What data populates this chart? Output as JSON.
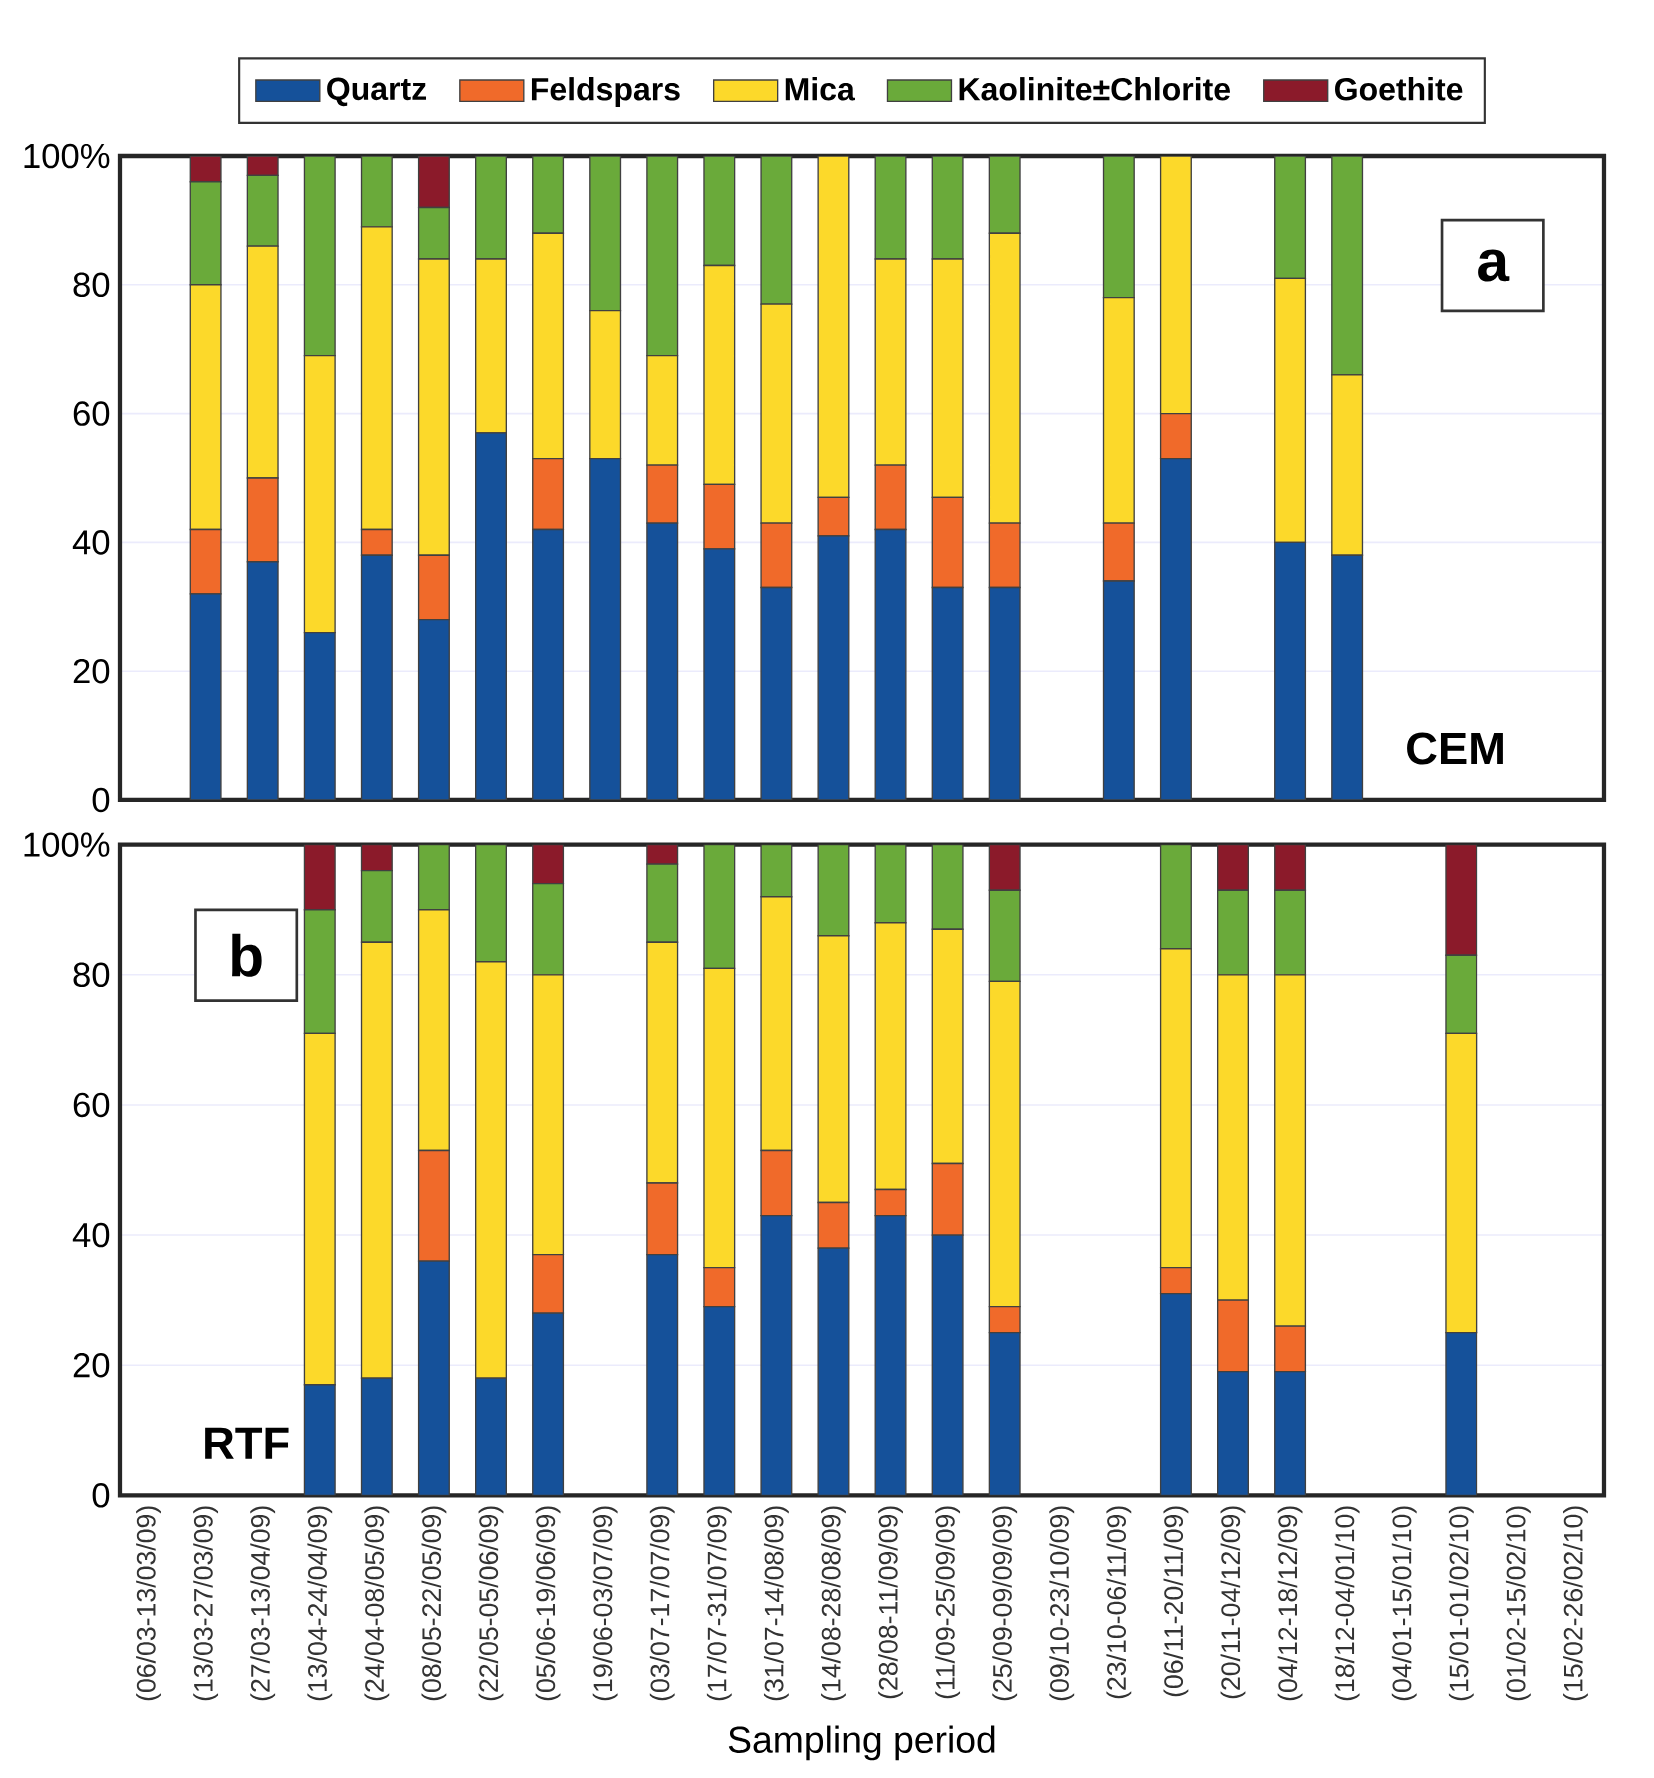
{
  "chart_data": [
    {
      "type": "bar",
      "stacked": true,
      "grid": "y",
      "legend": "top",
      "tick_labels": "y",
      "annotations": [
        "a",
        "CEM"
      ],
      "categories": [
        null,
        null,
        null,
        null,
        null,
        null,
        null,
        null,
        null,
        null,
        null,
        null,
        null,
        null,
        null,
        null,
        null,
        null,
        null,
        null,
        null,
        null,
        null,
        null,
        null,
        null
      ],
      "ylim": [
        0,
        100
      ],
      "yticks": [
        0,
        20,
        40,
        60,
        80,
        {
          "value": 100,
          "label": "100%"
        }
      ],
      "series": [
        {
          "name": "Quartz",
          "color": "#15519a",
          "values": [
            null,
            32,
            37,
            26,
            38,
            28,
            57,
            42,
            53,
            43,
            39,
            33,
            41,
            42,
            33,
            33,
            null,
            34,
            53,
            null,
            40,
            38,
            null,
            null,
            null,
            null
          ]
        },
        {
          "name": "Feldspars",
          "color": "#f06a2a",
          "values": [
            null,
            10,
            13,
            0,
            4,
            10,
            0,
            11,
            0,
            9,
            10,
            10,
            6,
            10,
            14,
            10,
            null,
            9,
            7,
            null,
            0,
            0,
            null,
            null,
            null,
            null
          ]
        },
        {
          "name": "Mica",
          "color": "#fcd92a",
          "values": [
            null,
            38,
            36,
            43,
            47,
            46,
            27,
            35,
            23,
            17,
            34,
            34,
            53,
            32,
            37,
            45,
            null,
            35,
            40,
            null,
            41,
            28,
            null,
            null,
            null,
            null
          ]
        },
        {
          "name": "Kaolinite±Chlorite",
          "color": "#6aaa3a",
          "values": [
            null,
            16,
            11,
            31,
            11,
            8,
            16,
            12,
            24,
            31,
            17,
            23,
            0,
            16,
            16,
            12,
            null,
            22,
            0,
            null,
            19,
            34,
            null,
            null,
            null,
            null
          ]
        },
        {
          "name": "Goethite",
          "color": "#8b1a2a",
          "values": [
            null,
            4,
            3,
            0,
            0,
            8,
            0,
            0,
            0,
            0,
            0,
            0,
            0,
            0,
            0,
            0,
            null,
            0,
            0,
            null,
            0,
            0,
            null,
            null,
            null,
            null
          ]
        }
      ]
    },
    {
      "type": "bar",
      "stacked": true,
      "grid": "y",
      "xlabel": "Sampling period",
      "annotations": [
        "b",
        "RTF"
      ],
      "categories": [
        "(06/03-13/03/09)",
        "(13/03-27/03/09)",
        "(27/03-13/04/09)",
        "(13/04-24/04/09)",
        "(24/04-08/05/09)",
        "(08/05-22/05/09)",
        "(22/05-05/06/09)",
        "(05/06-19/06/09)",
        "(19/06-03/07/09)",
        "(03/07-17/07/09)",
        "(17/07-31/07/09)",
        "(31/07-14/08/09)",
        "(14/08-28/08/09)",
        "(28/08-11/09/09)",
        "(11/09-25/09/09)",
        "(25/09-09/09/09)",
        "(09/10-23/10/09)",
        "(23/10-06/11/09)",
        "(06/11-20/11/09)",
        "(20/11-04/12/09)",
        "(04/12-18/12/09)",
        "(18/12-04/01/10)",
        "(04/01-15/01/10)",
        "(15/01-01/02/10)",
        "(01/02-15/02/10)",
        "(15/02-26/02/10)"
      ],
      "ylim": [
        0,
        100
      ],
      "yticks": [
        0,
        20,
        40,
        60,
        80,
        {
          "value": 100,
          "label": "100%"
        }
      ],
      "series": [
        {
          "color": "#15519a",
          "values": [
            null,
            null,
            null,
            17,
            18,
            36,
            18,
            28,
            null,
            37,
            29,
            43,
            38,
            43,
            40,
            25,
            null,
            null,
            31,
            19,
            19,
            null,
            null,
            25,
            null,
            null
          ]
        },
        {
          "color": "#f06a2a",
          "values": [
            null,
            null,
            null,
            0,
            0,
            17,
            0,
            9,
            null,
            11,
            6,
            10,
            7,
            4,
            11,
            4,
            null,
            null,
            4,
            11,
            7,
            null,
            null,
            0,
            null,
            null
          ]
        },
        {
          "color": "#fcd92a",
          "values": [
            null,
            null,
            null,
            54,
            67,
            37,
            64,
            43,
            null,
            37,
            46,
            39,
            41,
            41,
            36,
            50,
            null,
            null,
            49,
            50,
            54,
            null,
            null,
            46,
            null,
            null
          ]
        },
        {
          "color": "#6aaa3a",
          "values": [
            null,
            null,
            null,
            19,
            11,
            10,
            18,
            14,
            null,
            12,
            19,
            8,
            14,
            12,
            13,
            14,
            null,
            null,
            16,
            13,
            13,
            null,
            null,
            12,
            null,
            null
          ]
        },
        {
          "color": "#8b1a2a",
          "values": [
            null,
            null,
            null,
            10,
            4,
            0,
            0,
            6,
            null,
            3,
            0,
            0,
            0,
            0,
            0,
            7,
            null,
            null,
            0,
            7,
            7,
            null,
            null,
            17,
            null,
            null
          ]
        }
      ]
    }
  ]
}
